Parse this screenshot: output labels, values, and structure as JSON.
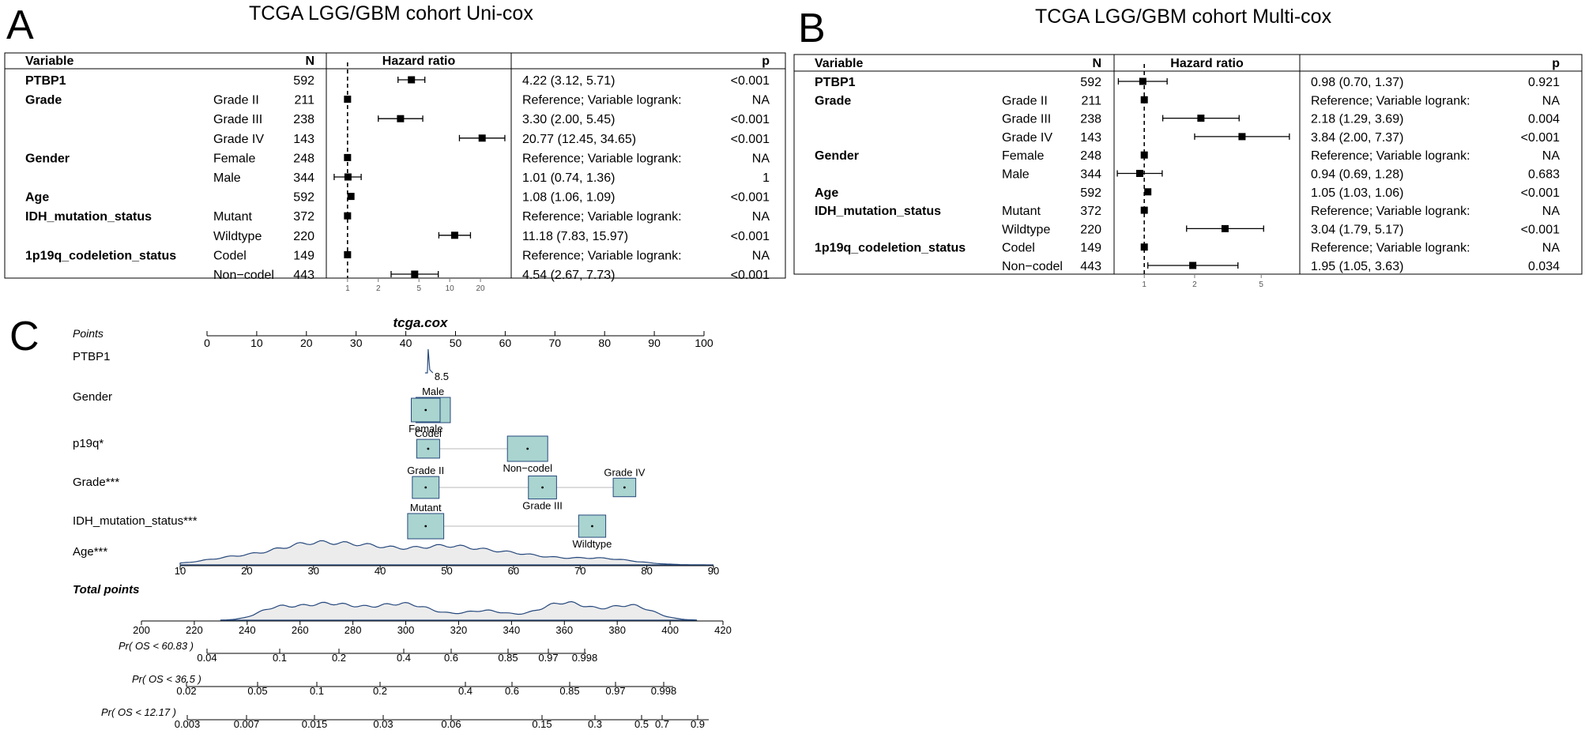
{
  "panels": {
    "a": {
      "letter": "A",
      "title": "TCGA LGG/GBM cohort Uni-cox"
    },
    "b": {
      "letter": "B",
      "title": "TCGA LGG/GBM cohort Multi-cox"
    },
    "c": {
      "letter": "C"
    }
  },
  "forest_headers": {
    "variable": "Variable",
    "n": "N",
    "hr": "Hazard ratio",
    "p": "p"
  },
  "chart_data": [
    {
      "type": "forest",
      "scale": "log",
      "reference_line": 1,
      "xticks": [
        1,
        2,
        5,
        10,
        20
      ],
      "xlim": [
        0.62,
        40
      ],
      "rows": [
        {
          "variable": "PTBP1",
          "level": "",
          "n": "592",
          "hr": 4.22,
          "lo": 3.12,
          "hi": 5.71,
          "text": "4.22 (3.12, 5.71)",
          "p": "<0.001"
        },
        {
          "variable": "Grade",
          "level": "Grade II",
          "n": "211",
          "hr": 1,
          "lo": null,
          "hi": null,
          "text": "Reference;  Variable logrank:",
          "p": "NA"
        },
        {
          "variable": "",
          "level": "Grade III",
          "n": "238",
          "hr": 3.3,
          "lo": 2.0,
          "hi": 5.45,
          "text": "3.30 (2.00, 5.45)",
          "p": "<0.001"
        },
        {
          "variable": "",
          "level": "Grade IV",
          "n": "143",
          "hr": 20.77,
          "lo": 12.45,
          "hi": 34.65,
          "text": "20.77 (12.45, 34.65)",
          "p": "<0.001"
        },
        {
          "variable": "Gender",
          "level": "Female",
          "n": "248",
          "hr": 1,
          "lo": null,
          "hi": null,
          "text": "Reference;  Variable logrank:",
          "p": "NA"
        },
        {
          "variable": "",
          "level": "Male",
          "n": "344",
          "hr": 1.01,
          "lo": 0.74,
          "hi": 1.36,
          "text": "1.01 (0.74, 1.36)",
          "p": "1"
        },
        {
          "variable": "Age",
          "level": "",
          "n": "592",
          "hr": 1.08,
          "lo": 1.06,
          "hi": 1.09,
          "text": "1.08 (1.06, 1.09)",
          "p": "<0.001"
        },
        {
          "variable": "IDH_mutation_status",
          "level": "Mutant",
          "n": "372",
          "hr": 1,
          "lo": null,
          "hi": null,
          "text": "Reference;  Variable logrank:",
          "p": "NA"
        },
        {
          "variable": "",
          "level": "Wildtype",
          "n": "220",
          "hr": 11.18,
          "lo": 7.83,
          "hi": 15.97,
          "text": "11.18 (7.83, 15.97)",
          "p": "<0.001"
        },
        {
          "variable": "1p19q_codeletion_status",
          "level": "Codel",
          "n": "149",
          "hr": 1,
          "lo": null,
          "hi": null,
          "text": "Reference;  Variable logrank:",
          "p": "NA"
        },
        {
          "variable": "",
          "level": "Non−codel",
          "n": "443",
          "hr": 4.54,
          "lo": 2.67,
          "hi": 7.73,
          "text": "4.54 (2.67, 7.73)",
          "p": "<0.001"
        }
      ]
    },
    {
      "type": "forest",
      "scale": "log",
      "reference_line": 1,
      "xticks": [
        1,
        2,
        5
      ],
      "xlim": [
        0.66,
        8.5
      ],
      "rows": [
        {
          "variable": "PTBP1",
          "level": "",
          "n": "592",
          "hr": 0.98,
          "lo": 0.7,
          "hi": 1.37,
          "text": "0.98 (0.70, 1.37)",
          "p": "0.921"
        },
        {
          "variable": "Grade",
          "level": "Grade II",
          "n": "211",
          "hr": 1,
          "lo": null,
          "hi": null,
          "text": "Reference;  Variable logrank:",
          "p": "NA"
        },
        {
          "variable": "",
          "level": "Grade III",
          "n": "238",
          "hr": 2.18,
          "lo": 1.29,
          "hi": 3.69,
          "text": "2.18 (1.29, 3.69)",
          "p": "0.004"
        },
        {
          "variable": "",
          "level": "Grade IV",
          "n": "143",
          "hr": 3.84,
          "lo": 2.0,
          "hi": 7.37,
          "text": "3.84 (2.00, 7.37)",
          "p": "<0.001"
        },
        {
          "variable": "Gender",
          "level": "Female",
          "n": "248",
          "hr": 1,
          "lo": null,
          "hi": null,
          "text": "Reference;  Variable logrank:",
          "p": "NA"
        },
        {
          "variable": "",
          "level": "Male",
          "n": "344",
          "hr": 0.94,
          "lo": 0.69,
          "hi": 1.28,
          "text": "0.94 (0.69, 1.28)",
          "p": "0.683"
        },
        {
          "variable": "Age",
          "level": "",
          "n": "592",
          "hr": 1.05,
          "lo": 1.03,
          "hi": 1.06,
          "text": "1.05 (1.03, 1.06)",
          "p": "<0.001"
        },
        {
          "variable": "IDH_mutation_status",
          "level": "Mutant",
          "n": "372",
          "hr": 1,
          "lo": null,
          "hi": null,
          "text": "Reference;  Variable logrank:",
          "p": "NA"
        },
        {
          "variable": "",
          "level": "Wildtype",
          "n": "220",
          "hr": 3.04,
          "lo": 1.79,
          "hi": 5.17,
          "text": "3.04 (1.79, 5.17)",
          "p": "<0.001"
        },
        {
          "variable": "1p19q_codeletion_status",
          "level": "Codel",
          "n": "149",
          "hr": 1,
          "lo": null,
          "hi": null,
          "text": "Reference;  Variable logrank:",
          "p": "NA"
        },
        {
          "variable": "",
          "level": "Non−codel",
          "n": "443",
          "hr": 1.95,
          "lo": 1.05,
          "hi": 3.63,
          "text": "1.95 (1.05, 3.63)",
          "p": "0.034"
        }
      ]
    },
    {
      "type": "nomogram",
      "title": "tcga.cox",
      "points_axis": {
        "label": "Points",
        "ticks": [
          0,
          10,
          20,
          30,
          40,
          50,
          60,
          70,
          80,
          90,
          100
        ]
      },
      "variables": [
        {
          "label": "PTBP1",
          "kind": "density",
          "values": [
            {
              "name": "8.5",
              "points": 44.5
            }
          ]
        },
        {
          "label": "Gender",
          "kind": "categorical",
          "levels": [
            {
              "name": "Male",
              "points": 45.5,
              "share": 0.58
            },
            {
              "name": "Female",
              "points": 44.0,
              "share": 0.42
            }
          ]
        },
        {
          "label": "p19q*",
          "kind": "categorical",
          "levels": [
            {
              "name": "Codel",
              "points": 44.5,
              "share": 0.25
            },
            {
              "name": "Non−codel",
              "points": 64.5,
              "share": 0.75
            }
          ]
        },
        {
          "label": "Grade***",
          "kind": "categorical",
          "levels": [
            {
              "name": "Grade II",
              "points": 44.0,
              "share": 0.36
            },
            {
              "name": "Grade III",
              "points": 67.5,
              "share": 0.4
            },
            {
              "name": "Grade IV",
              "points": 84.0,
              "share": 0.24
            }
          ]
        },
        {
          "label": "IDH_mutation_status***",
          "kind": "categorical",
          "levels": [
            {
              "name": "Mutant",
              "points": 44.0,
              "share": 0.63
            },
            {
              "name": "Wildtype",
              "points": 77.5,
              "share": 0.37
            }
          ]
        },
        {
          "label": "Age***",
          "kind": "density",
          "ticks": [
            10,
            20,
            30,
            40,
            50,
            60,
            70,
            80,
            90
          ]
        }
      ],
      "total_points": {
        "label": "Total points",
        "ticks": [
          200,
          220,
          240,
          260,
          280,
          300,
          320,
          340,
          360,
          380,
          400,
          420
        ]
      },
      "probability_axes": [
        {
          "label": "Pr( OS < 60.83 )",
          "ticks": [
            0.04,
            0.1,
            0.2,
            0.4,
            0.6,
            0.85,
            0.97,
            0.998
          ]
        },
        {
          "label": "Pr( OS < 36.5 )",
          "ticks": [
            0.02,
            0.05,
            0.1,
            0.2,
            0.4,
            0.6,
            0.85,
            0.97,
            0.998
          ]
        },
        {
          "label": "Pr( OS < 12.17 )",
          "ticks": [
            0.003,
            0.007,
            0.015,
            0.03,
            0.06,
            0.15,
            0.3,
            0.5,
            0.7,
            0.9
          ]
        }
      ]
    }
  ],
  "colors": {
    "box_fill": "#a9d4cf",
    "box_stroke": "#27497d",
    "density_stroke": "#27497d",
    "density_fill": "#ececec",
    "connector": "#c8c8c8"
  }
}
